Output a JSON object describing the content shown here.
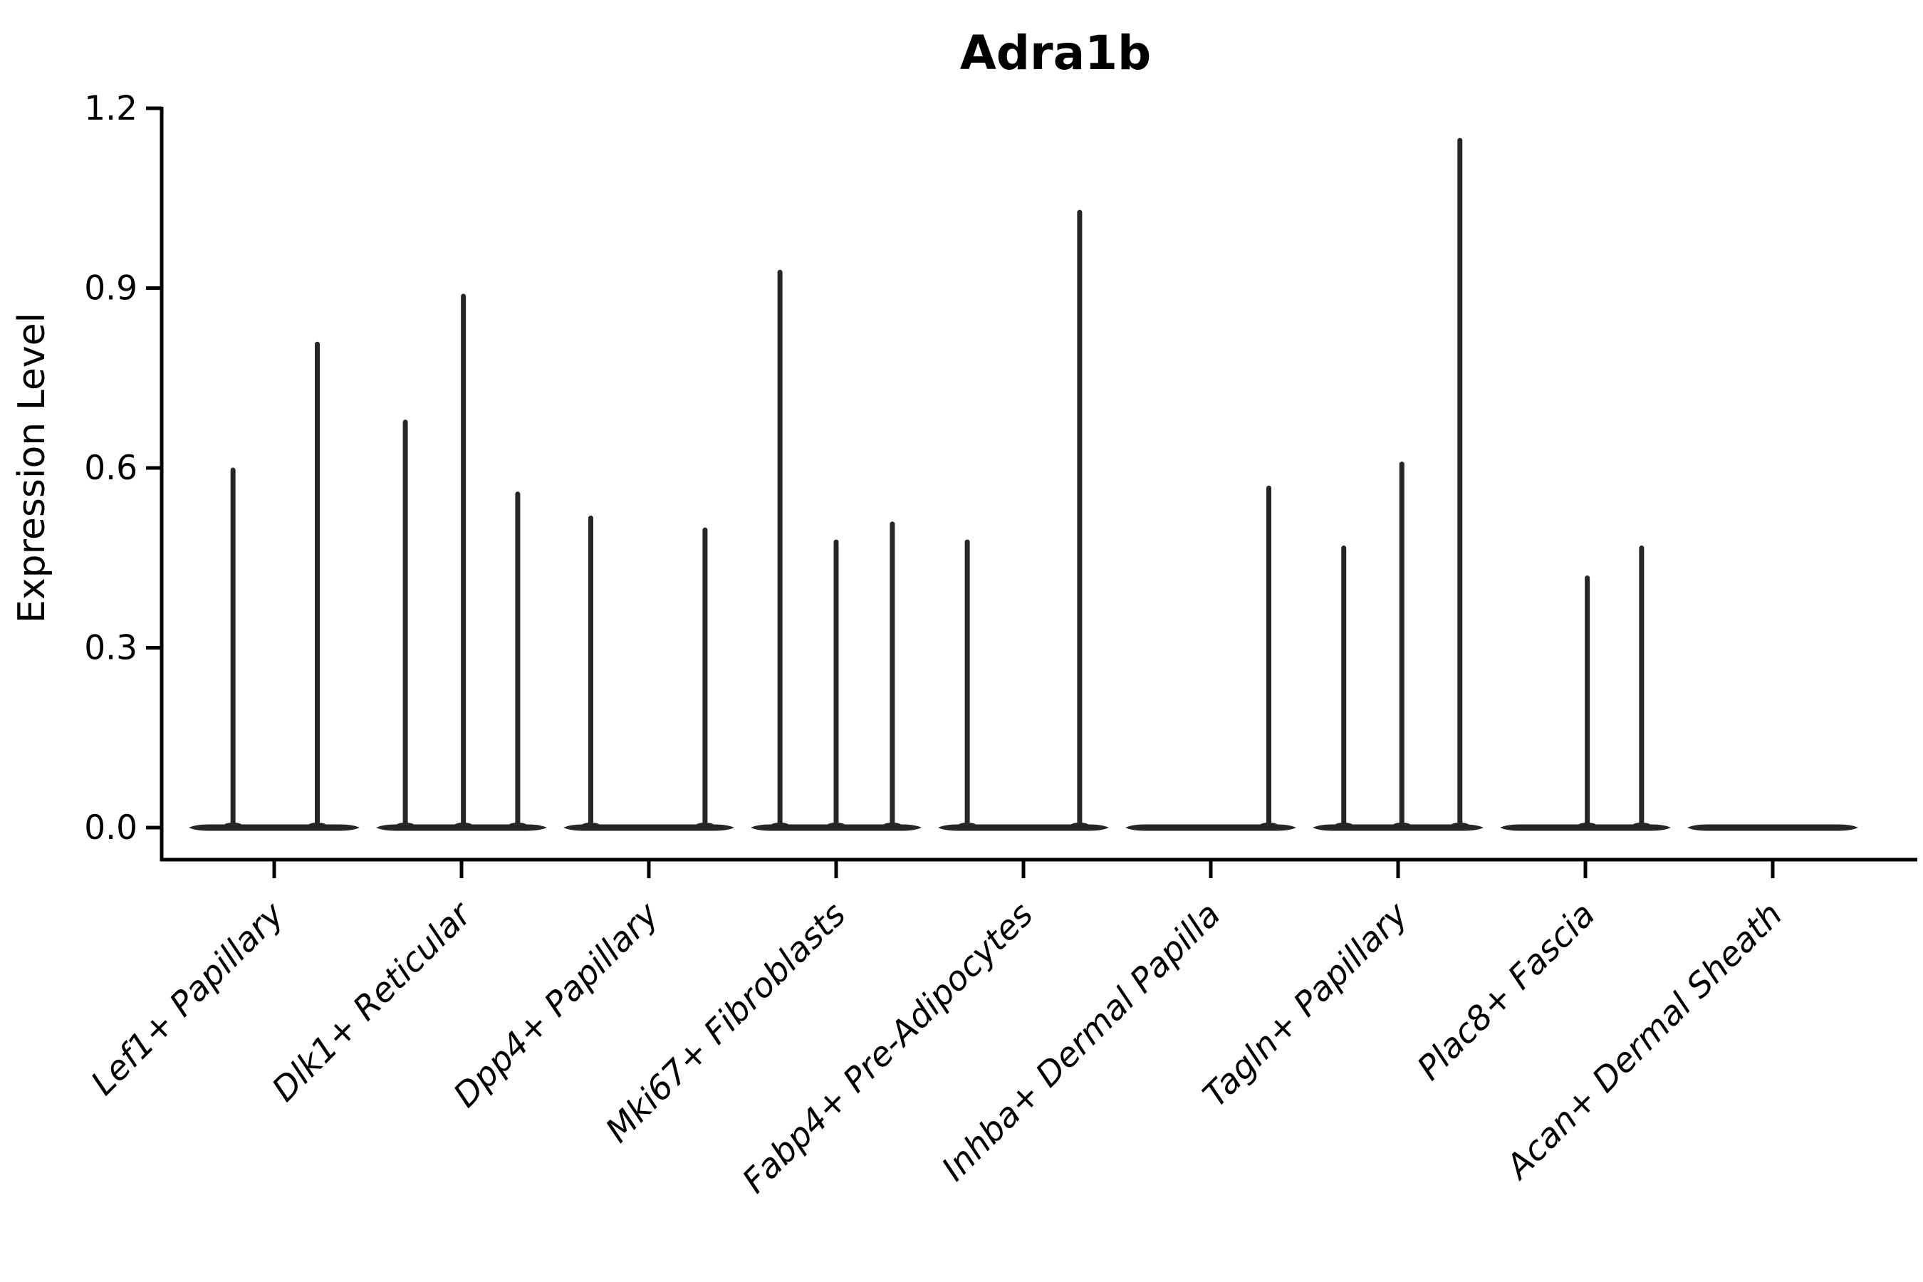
{
  "chart_data": {
    "type": "violin",
    "title": "Adra1b",
    "xlabel": "",
    "ylabel": "Expression Level",
    "ylim": [
      0,
      1.2
    ],
    "ytick_labels": [
      "0.0",
      "0.3",
      "0.6",
      "0.9",
      "1.2"
    ],
    "ytick_values": [
      0.0,
      0.3,
      0.6,
      0.9,
      1.2
    ],
    "grid": false,
    "legend_position": "none",
    "background_color": "#ffffff",
    "axis_color": "#000000",
    "violin_color": "#262626",
    "violin_halfwidth": 0.456,
    "categories": [
      "Lef1+ Papillary",
      "Dlk1+ Reticular",
      "Dpp4+ Papillary",
      "Mki67+ Fibroblasts",
      "Fabp4+ Pre-Adipocytes",
      "Inhba+ Dermal Papilla",
      "Tagln+ Papillary",
      "Plac8+ Fascia",
      "Acan+ Dermal Sheath"
    ],
    "series": [
      {
        "name": "Lef1+ Papillary",
        "spikes": [
          {
            "offset": -0.22,
            "value": 0.6
          },
          {
            "offset": 0.23,
            "value": 0.81
          }
        ]
      },
      {
        "name": "Dlk1+ Reticular",
        "spikes": [
          {
            "offset": -0.3,
            "value": 0.68
          },
          {
            "offset": 0.01,
            "value": 0.89
          },
          {
            "offset": 0.3,
            "value": 0.56
          }
        ]
      },
      {
        "name": "Dpp4+ Papillary",
        "spikes": [
          {
            "offset": -0.31,
            "value": 0.52
          },
          {
            "offset": 0.3,
            "value": 0.5
          }
        ]
      },
      {
        "name": "Mki67+ Fibroblasts",
        "spikes": [
          {
            "offset": -0.3,
            "value": 0.93
          },
          {
            "offset": 0.0,
            "value": 0.48
          },
          {
            "offset": 0.3,
            "value": 0.51
          }
        ]
      },
      {
        "name": "Fabp4+ Pre-Adipocytes",
        "spikes": [
          {
            "offset": -0.3,
            "value": 0.48
          },
          {
            "offset": 0.3,
            "value": 1.03
          }
        ]
      },
      {
        "name": "Inhba+ Dermal Papilla",
        "spikes": [
          {
            "offset": 0.31,
            "value": 0.57
          }
        ]
      },
      {
        "name": "Tagln+ Papillary",
        "spikes": [
          {
            "offset": -0.29,
            "value": 0.47
          },
          {
            "offset": 0.02,
            "value": 0.61
          },
          {
            "offset": 0.33,
            "value": 1.15
          }
        ]
      },
      {
        "name": "Plac8+ Fascia",
        "spikes": [
          {
            "offset": 0.01,
            "value": 0.42
          },
          {
            "offset": 0.3,
            "value": 0.47
          }
        ]
      },
      {
        "name": "Acan+ Dermal Sheath",
        "spikes": []
      }
    ]
  }
}
